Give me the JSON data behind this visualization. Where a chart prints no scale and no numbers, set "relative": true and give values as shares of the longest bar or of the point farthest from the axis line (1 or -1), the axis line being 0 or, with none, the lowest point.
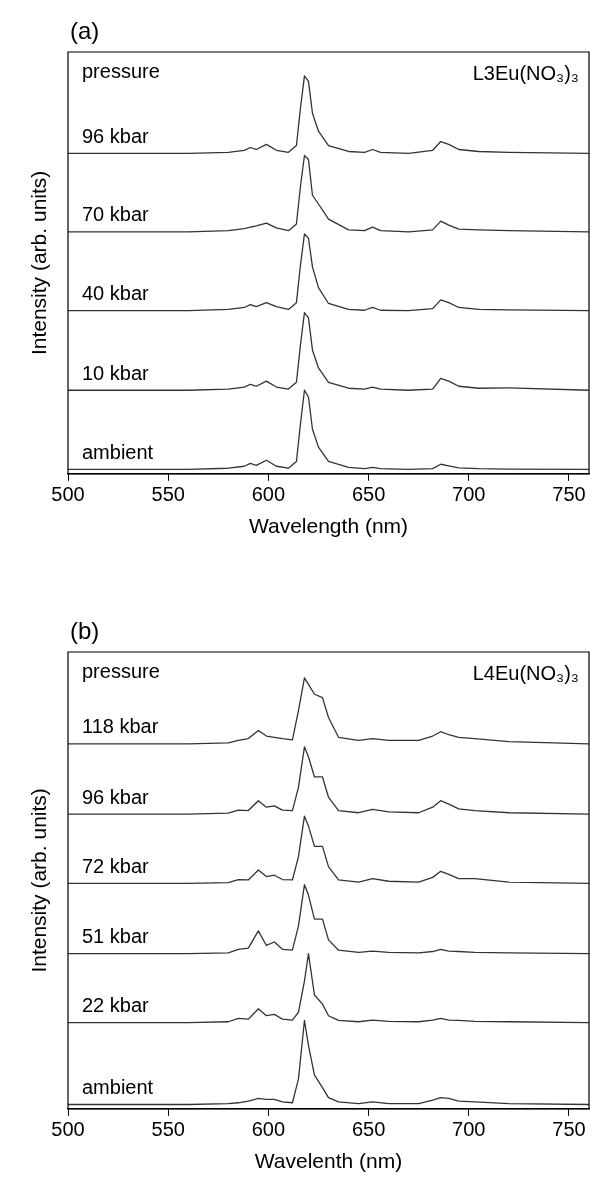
{
  "chart_data": [
    {
      "type": "line",
      "title": "(a)",
      "xlabel": "Wavelength (nm)",
      "ylabel": "Intensity (arb. units)",
      "relative": true,
      "legend": false,
      "annotations": [
        "pressure",
        "L3Eu(NO₃)₃"
      ],
      "xlim": [
        500,
        760
      ],
      "xticks": [
        500,
        550,
        600,
        650,
        700,
        750
      ],
      "x": [
        500,
        560,
        580,
        588,
        591,
        594,
        599,
        604,
        610,
        614,
        616,
        618,
        620,
        622,
        625,
        630,
        640,
        648,
        652,
        656,
        670,
        682,
        686,
        690,
        695,
        705,
        720,
        760
      ],
      "series": [
        {
          "name": "96 kbar",
          "color": "#333333",
          "values": [
            0.805,
            0.805,
            0.808,
            0.813,
            0.82,
            0.815,
            0.828,
            0.813,
            0.808,
            0.825,
            0.919,
            1.0,
            0.987,
            0.906,
            0.861,
            0.825,
            0.81,
            0.808,
            0.815,
            0.808,
            0.805,
            0.813,
            0.835,
            0.828,
            0.815,
            0.81,
            0.808,
            0.805
          ]
        },
        {
          "name": "70 kbar",
          "color": "#333333",
          "values": [
            0.608,
            0.608,
            0.611,
            0.616,
            0.62,
            0.623,
            0.63,
            0.618,
            0.611,
            0.628,
            0.722,
            0.8,
            0.79,
            0.7,
            0.678,
            0.64,
            0.613,
            0.611,
            0.62,
            0.611,
            0.608,
            0.613,
            0.635,
            0.625,
            0.615,
            0.613,
            0.611,
            0.608
          ]
        },
        {
          "name": "40 kbar",
          "color": "#333333",
          "values": [
            0.41,
            0.41,
            0.413,
            0.418,
            0.425,
            0.42,
            0.43,
            0.42,
            0.413,
            0.43,
            0.524,
            0.603,
            0.592,
            0.52,
            0.468,
            0.428,
            0.413,
            0.411,
            0.418,
            0.411,
            0.41,
            0.415,
            0.437,
            0.43,
            0.418,
            0.413,
            0.412,
            0.41
          ]
        },
        {
          "name": "10 kbar",
          "color": "#333333",
          "values": [
            0.21,
            0.21,
            0.213,
            0.218,
            0.225,
            0.22,
            0.233,
            0.218,
            0.213,
            0.23,
            0.324,
            0.405,
            0.392,
            0.311,
            0.266,
            0.23,
            0.215,
            0.213,
            0.218,
            0.213,
            0.21,
            0.213,
            0.24,
            0.233,
            0.22,
            0.215,
            0.216,
            0.21
          ]
        },
        {
          "name": "ambient",
          "color": "#333333",
          "values": [
            0.011,
            0.011,
            0.014,
            0.019,
            0.026,
            0.021,
            0.034,
            0.019,
            0.014,
            0.031,
            0.125,
            0.21,
            0.193,
            0.112,
            0.067,
            0.031,
            0.016,
            0.013,
            0.016,
            0.013,
            0.011,
            0.013,
            0.024,
            0.02,
            0.015,
            0.013,
            0.012,
            0.011
          ]
        }
      ]
    },
    {
      "type": "line",
      "title": "(b)",
      "xlabel": "Wavelenth (nm)",
      "ylabel": "Intensity (arb. units)",
      "relative": true,
      "legend": false,
      "annotations": [
        "pressure",
        "L4Eu(NO₃)₃"
      ],
      "xlim": [
        500,
        760
      ],
      "xticks": [
        500,
        550,
        600,
        650,
        700,
        750
      ],
      "x": [
        500,
        560,
        580,
        585,
        590,
        595,
        599,
        603,
        607,
        612,
        615,
        618,
        620,
        623,
        627,
        630,
        635,
        645,
        652,
        660,
        675,
        682,
        686,
        690,
        695,
        703,
        720,
        760
      ],
      "series": [
        {
          "name": "118 kbar",
          "color": "#333333",
          "values": [
            0.847,
            0.847,
            0.849,
            0.855,
            0.859,
            0.878,
            0.865,
            0.862,
            0.859,
            0.856,
            0.924,
            1.0,
            0.985,
            0.962,
            0.954,
            0.908,
            0.862,
            0.855,
            0.859,
            0.855,
            0.855,
            0.865,
            0.875,
            0.868,
            0.862,
            0.859,
            0.852,
            0.847
          ]
        },
        {
          "name": "96 kbar",
          "color": "#333333",
          "values": [
            0.684,
            0.684,
            0.686,
            0.693,
            0.692,
            0.715,
            0.7,
            0.703,
            0.693,
            0.692,
            0.746,
            0.84,
            0.817,
            0.77,
            0.77,
            0.723,
            0.692,
            0.687,
            0.695,
            0.689,
            0.687,
            0.7,
            0.715,
            0.707,
            0.696,
            0.692,
            0.687,
            0.684
          ]
        },
        {
          "name": "72 kbar",
          "color": "#333333",
          "values": [
            0.523,
            0.523,
            0.525,
            0.532,
            0.531,
            0.554,
            0.539,
            0.542,
            0.532,
            0.531,
            0.585,
            0.679,
            0.656,
            0.609,
            0.609,
            0.562,
            0.531,
            0.526,
            0.534,
            0.528,
            0.526,
            0.537,
            0.551,
            0.544,
            0.534,
            0.534,
            0.526,
            0.523
          ]
        },
        {
          "name": "51 kbar",
          "color": "#333333",
          "values": [
            0.36,
            0.36,
            0.362,
            0.37,
            0.373,
            0.413,
            0.379,
            0.387,
            0.37,
            0.368,
            0.424,
            0.52,
            0.496,
            0.44,
            0.44,
            0.392,
            0.368,
            0.363,
            0.366,
            0.363,
            0.362,
            0.365,
            0.37,
            0.366,
            0.365,
            0.363,
            0.362,
            0.36
          ]
        },
        {
          "name": "22 kbar",
          "color": "#333333",
          "values": [
            0.2,
            0.2,
            0.202,
            0.21,
            0.208,
            0.232,
            0.216,
            0.219,
            0.208,
            0.206,
            0.224,
            0.296,
            0.36,
            0.264,
            0.243,
            0.216,
            0.205,
            0.202,
            0.206,
            0.203,
            0.202,
            0.206,
            0.21,
            0.206,
            0.205,
            0.203,
            0.202,
            0.2
          ]
        },
        {
          "name": "ambient",
          "color": "#333333",
          "values": [
            0.01,
            0.01,
            0.012,
            0.014,
            0.018,
            0.024,
            0.022,
            0.022,
            0.016,
            0.014,
            0.069,
            0.205,
            0.147,
            0.078,
            0.049,
            0.026,
            0.016,
            0.012,
            0.016,
            0.012,
            0.012,
            0.02,
            0.026,
            0.024,
            0.018,
            0.016,
            0.012,
            0.01
          ]
        }
      ]
    }
  ]
}
